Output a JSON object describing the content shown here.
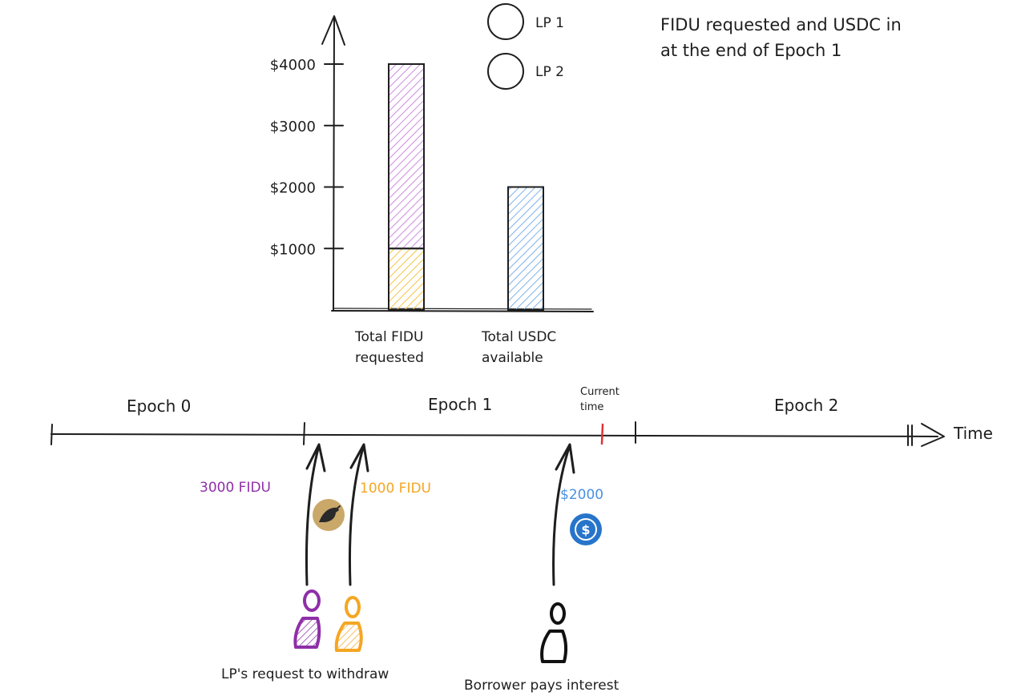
{
  "caption": {
    "line1": "FIDU requested and USDC in",
    "line2": "at the end of Epoch 1"
  },
  "chart_data": {
    "type": "bar",
    "categories": [
      "Total FIDU requested",
      "Total USDC available"
    ],
    "category_label_lines": [
      [
        "Total FIDU",
        "requested"
      ],
      [
        "Total USDC",
        "available"
      ]
    ],
    "series": [
      {
        "name": "LP 2",
        "values": [
          1000,
          0
        ],
        "color": "#f5c542"
      },
      {
        "name": "LP 1",
        "values": [
          3000,
          0
        ],
        "color": "#cf8be0"
      },
      {
        "name": "",
        "values": [
          0,
          2000
        ],
        "color": "#7fb2e8"
      }
    ],
    "stacked": true,
    "yticks": [
      1000,
      2000,
      3000,
      4000
    ],
    "ytick_labels": [
      "$1000",
      "$2000",
      "$3000",
      "$4000"
    ],
    "ylim": [
      0,
      4000
    ],
    "legend": [
      {
        "label": "LP 1",
        "color": "#cf8be0"
      },
      {
        "label": "LP 2",
        "color": "#f5c542"
      }
    ],
    "legend_position": "top",
    "grid": false
  },
  "timeline": {
    "epochs": [
      "Epoch 0",
      "Epoch 1",
      "Epoch 2"
    ],
    "axis_label": "Time",
    "current_time_line1": "Current",
    "current_time_line2": "time",
    "current_marker_color": "#e03131"
  },
  "events": {
    "lp1_amount": "3000 FIDU",
    "lp1_color": "#8e2fa8",
    "lp2_amount": "1000 FIDU",
    "lp2_color": "#f5a623",
    "borrower_amount": "$2000",
    "borrower_color": "#4a90e2",
    "goldfinch_icon_color": "#c9a86a",
    "usdc_icon_color": "#2775ca",
    "lp_caption": "LP's request to withdraw",
    "borrower_caption": "Borrower pays interest"
  }
}
